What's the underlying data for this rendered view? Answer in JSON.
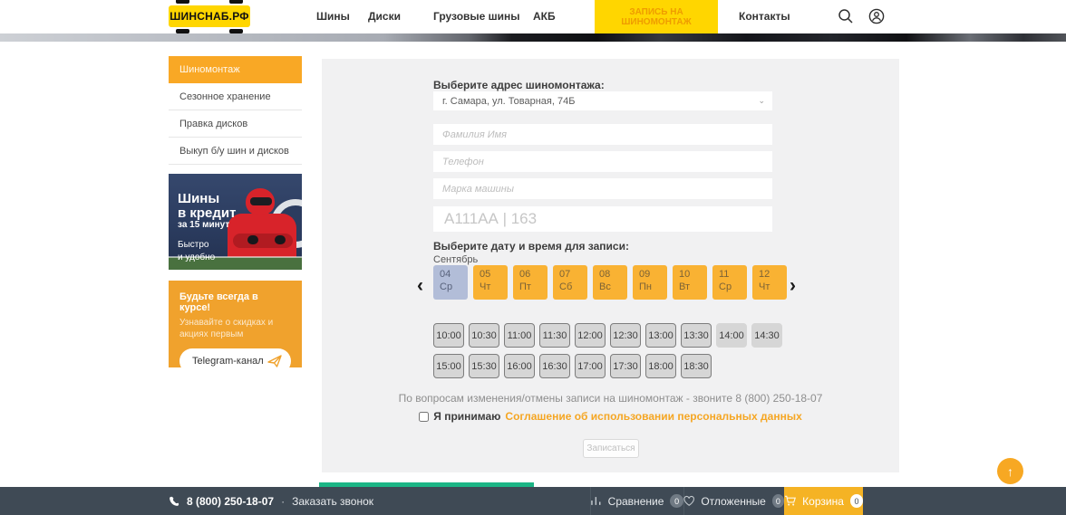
{
  "header": {
    "logo": "ШИНСНАБ.РФ",
    "nav": [
      {
        "label": "Шины"
      },
      {
        "label": "Диски"
      },
      {
        "label": "Грузовые шины"
      },
      {
        "label": "АКБ"
      }
    ],
    "cta_label": "ЗАПИСЬ НА ШИНОМОНТАЖ",
    "contacts_label": "Контакты",
    "icons": {
      "search": "magnifier",
      "profile": "user-circle"
    }
  },
  "sidebar": {
    "items": [
      {
        "label": "Шиномонтаж",
        "active": true
      },
      {
        "label": "Сезонное хранение",
        "active": false
      },
      {
        "label": "Правка дисков",
        "active": false
      },
      {
        "label": "Выкуп б/у шин и дисков",
        "active": false
      }
    ]
  },
  "banner": {
    "title_line1": "Шины",
    "title_line2": "в кредит",
    "subtitle": "за 15 минут",
    "tagline_line1": "Быстро",
    "tagline_line2": "и удобно"
  },
  "telegram": {
    "title": "Будьте всегда в курсе!",
    "subtitle": "Узнавайте о скидках и акциях первым",
    "button_label": "Telegram-канал",
    "icon": "paper-plane"
  },
  "form": {
    "address_label": "Выберите адрес шиномонтажа:",
    "address_value": "г. Самара, ул. Товарная, 74Б",
    "name_placeholder": "Фамилия Имя",
    "phone_placeholder": "Телефон",
    "car_placeholder": "Марка машины",
    "plate_placeholder": "А111АА | 163",
    "datetime_label": "Выберите дату и время для записи:",
    "month": "Сентябрь",
    "dates": [
      {
        "day": "04",
        "weekday": "Ср",
        "selected": true
      },
      {
        "day": "05",
        "weekday": "Чт",
        "selected": false
      },
      {
        "day": "06",
        "weekday": "Пт",
        "selected": false
      },
      {
        "day": "07",
        "weekday": "Сб",
        "selected": false
      },
      {
        "day": "08",
        "weekday": "Вс",
        "selected": false
      },
      {
        "day": "09",
        "weekday": "Пн",
        "selected": false
      },
      {
        "day": "10",
        "weekday": "Вт",
        "selected": false
      },
      {
        "day": "11",
        "weekday": "Ср",
        "selected": false
      },
      {
        "day": "12",
        "weekday": "Чт",
        "selected": false
      }
    ],
    "times": [
      {
        "label": "10:00",
        "bordered": true
      },
      {
        "label": "10:30",
        "bordered": true
      },
      {
        "label": "11:00",
        "bordered": true
      },
      {
        "label": "11:30",
        "bordered": true
      },
      {
        "label": "12:00",
        "bordered": true
      },
      {
        "label": "12:30",
        "bordered": true
      },
      {
        "label": "13:00",
        "bordered": true
      },
      {
        "label": "13:30",
        "bordered": true
      },
      {
        "label": "14:00",
        "bordered": false
      },
      {
        "label": "14:30",
        "bordered": false
      },
      {
        "label": "15:00",
        "bordered": true
      },
      {
        "label": "15:30",
        "bordered": true
      },
      {
        "label": "16:00",
        "bordered": true
      },
      {
        "label": "16:30",
        "bordered": true
      },
      {
        "label": "17:00",
        "bordered": true
      },
      {
        "label": "17:30",
        "bordered": true
      },
      {
        "label": "18:00",
        "bordered": true
      },
      {
        "label": "18:30",
        "bordered": true
      }
    ],
    "info_text": "По вопросам изменения/отмены записи на шиномонтаж - звоните 8 (800) 250-18-07",
    "consent_prefix": "Я принимаю",
    "consent_link": "Соглашение об использовании персональных данных",
    "submit_label": "Записаться"
  },
  "footer": {
    "phone": "8 (800) 250-18-07",
    "separator": "·",
    "callback_label": "Заказать звонок",
    "compare": {
      "label": "Сравнение",
      "count": "0"
    },
    "deferred": {
      "label": "Отложенные",
      "count": "0"
    },
    "cart": {
      "label": "Корзина",
      "count": "0"
    }
  },
  "colors": {
    "brand_yellow": "#FFD600",
    "accent_orange": "#F5A623",
    "date_orange": "#F9B233",
    "date_selected": "#B2BDD8",
    "footer_bg": "#3F4A55",
    "teal": "#1CB585"
  }
}
